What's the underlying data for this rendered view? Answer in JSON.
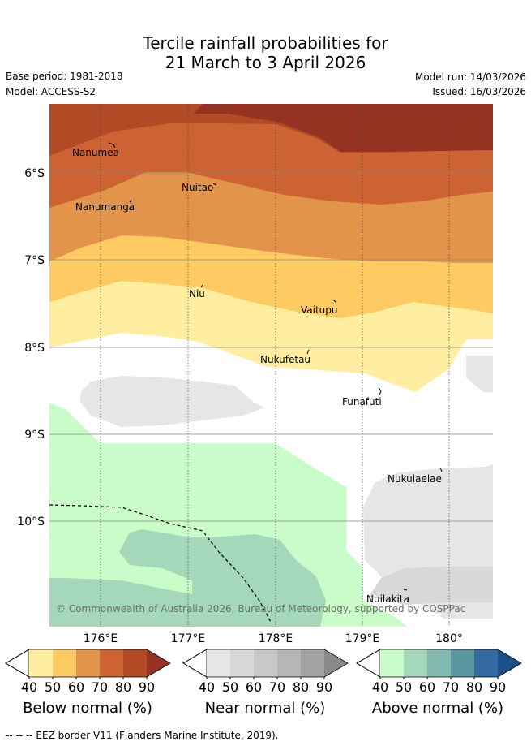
{
  "title": {
    "line1": "Tercile rainfall probabilities for",
    "line2": "21 March to 3 April 2026"
  },
  "meta": {
    "base_period": "Base period: 1981-2018",
    "model": "Model: ACCESS-S2",
    "model_run": "Model run: 14/03/2026",
    "issued": "Issued: 16/03/2026"
  },
  "map": {
    "lat_labels": [
      "6°S",
      "7°S",
      "8°S",
      "9°S",
      "10°S"
    ],
    "lon_labels": [
      "176°E",
      "177°E",
      "178°E",
      "179°E",
      "180°"
    ],
    "places": [
      "Nanumea",
      "Nuitao",
      "Nanumanga",
      "Niu",
      "Vaitupu",
      "Nukufetau",
      "Funafuti",
      "Nukulaelae",
      "Nuilakita"
    ],
    "copyright": "© Commonwealth of Australia 2026, Bureau of Meteorology, supported by COSPPac"
  },
  "colorbars": [
    {
      "label": "Below normal (%)",
      "ticks": [
        "40",
        "50",
        "60",
        "70",
        "80",
        "90"
      ],
      "colors": [
        "#ffeda0",
        "#fecb63",
        "#e1944a",
        "#cd6232",
        "#b24a26",
        "#963222"
      ]
    },
    {
      "label": "Near normal (%)",
      "ticks": [
        "40",
        "50",
        "60",
        "70",
        "80",
        "90"
      ],
      "colors": [
        "#e6e6e6",
        "#d8d8d8",
        "#c8c8c8",
        "#b6b6b6",
        "#a2a2a2",
        "#8a8a8a"
      ]
    },
    {
      "label": "Above normal (%)",
      "ticks": [
        "40",
        "50",
        "60",
        "70",
        "80",
        "90"
      ],
      "colors": [
        "#c9fcc9",
        "#a5d7ba",
        "#82b9b0",
        "#5a96a0",
        "#336aa1",
        "#1a4f88"
      ]
    }
  ],
  "footer": "--  --  -- EEZ border V11 (Flanders Marine Institute, 2019)."
}
